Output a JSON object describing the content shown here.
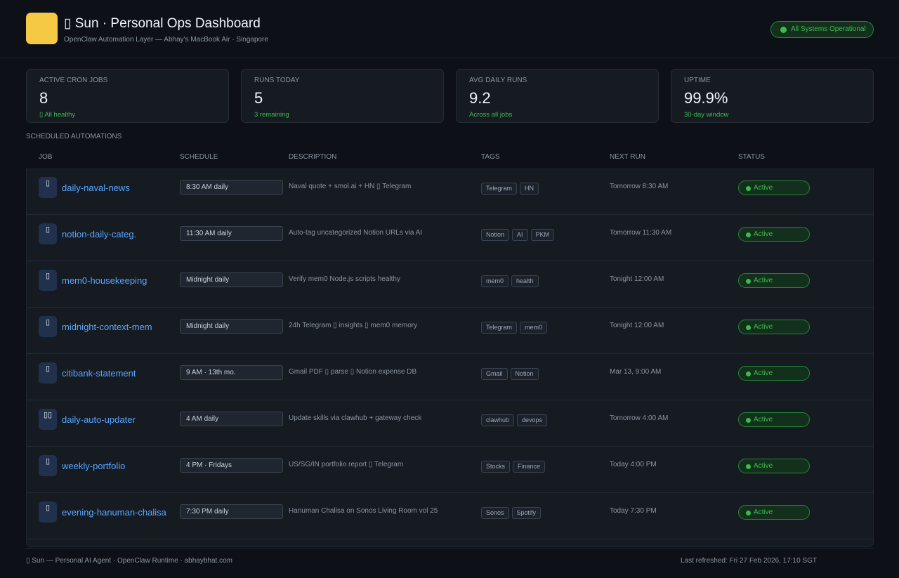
{
  "header": {
    "title": "▯ Sun · Personal Ops Dashboard",
    "subtitle": "OpenClaw Automation Layer — Abhay's MacBook Air · Singapore",
    "status_badge": "All Systems Operational"
  },
  "stats": [
    {
      "label": "ACTIVE CRON JOBS",
      "value": "8",
      "sub": "▯ All healthy"
    },
    {
      "label": "RUNS TODAY",
      "value": "5",
      "sub": "3 remaining"
    },
    {
      "label": "AVG DAILY RUNS",
      "value": "9.2",
      "sub": "Across all jobs"
    },
    {
      "label": "UPTIME",
      "value": "99.9%",
      "sub": "30-day window"
    }
  ],
  "section_label": "SCHEDULED AUTOMATIONS",
  "columns": {
    "job": "JOB",
    "schedule": "SCHEDULE",
    "description": "DESCRIPTION",
    "tags": "TAGS",
    "next_run": "NEXT RUN",
    "status": "STATUS"
  },
  "jobs": [
    {
      "icon": "▯",
      "name": "daily-naval-news",
      "schedule": "8:30 AM daily",
      "description": "Naval quote + smol.ai + HN ▯ Telegram",
      "tags": [
        "Telegram",
        "HN"
      ],
      "next_run": "Tomorrow 8:30 AM",
      "status": "Active"
    },
    {
      "icon": "▯",
      "name": "notion-daily-categ.",
      "schedule": "11:30 AM daily",
      "description": "Auto-tag uncategorized Notion URLs via AI",
      "tags": [
        "Notion",
        "AI",
        "PKM"
      ],
      "next_run": "Tomorrow 11:30 AM",
      "status": "Active"
    },
    {
      "icon": "▯",
      "name": "mem0-housekeeping",
      "schedule": "Midnight daily",
      "description": "Verify mem0 Node.js scripts healthy",
      "tags": [
        "mem0",
        "health"
      ],
      "next_run": "Tonight 12:00 AM",
      "status": "Active"
    },
    {
      "icon": "▯",
      "name": "midnight-context-mem",
      "schedule": "Midnight daily",
      "description": "24h Telegram ▯ insights ▯ mem0 memory",
      "tags": [
        "Telegram",
        "mem0"
      ],
      "next_run": "Tonight 12:00 AM",
      "status": "Active"
    },
    {
      "icon": "▯",
      "name": "citibank-statement",
      "schedule": "9 AM · 13th mo.",
      "description": "Gmail PDF ▯ parse ▯ Notion expense DB",
      "tags": [
        "Gmail",
        "Notion"
      ],
      "next_run": "Mar 13, 9:00 AM",
      "status": "Active"
    },
    {
      "icon": "▯▯",
      "name": "daily-auto-updater",
      "schedule": "4 AM daily",
      "description": "Update skills via clawhub + gateway check",
      "tags": [
        "clawhub",
        "devops"
      ],
      "next_run": "Tomorrow 4:00 AM",
      "status": "Active"
    },
    {
      "icon": "▯",
      "name": "weekly-portfolio",
      "schedule": "4 PM · Fridays",
      "description": "US/SG/IN portfolio report ▯ Telegram",
      "tags": [
        "Stocks",
        "Finance"
      ],
      "next_run": "Today 4:00 PM",
      "status": "Active"
    },
    {
      "icon": "▯",
      "name": "evening-hanuman-chalisa",
      "schedule": "7:30 PM daily",
      "description": "Hanuman Chalisa on Sonos Living Room vol 25",
      "tags": [
        "Sonos",
        "Spotify"
      ],
      "next_run": "Today 7:30 PM",
      "status": "Active"
    }
  ],
  "footer": {
    "left": "▯ Sun — Personal AI Agent · OpenClaw Runtime · abhaybhat.com",
    "right": "Last refreshed: Fri 27 Feb 2026, 17:10 SGT"
  },
  "colors": {
    "background": "#0d1117",
    "card": "#161b22",
    "accent_yellow": "#f6c945",
    "link_blue": "#58a6ff",
    "status_green": "#3fb950"
  }
}
